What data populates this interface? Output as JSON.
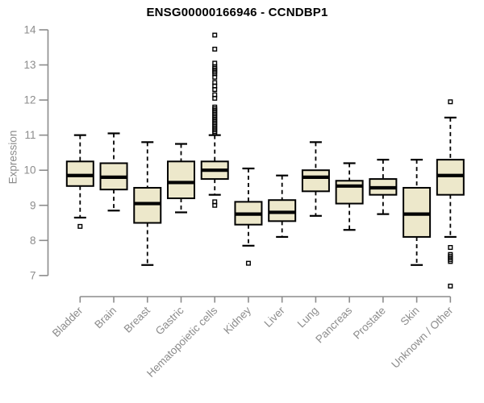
{
  "chart_data": {
    "type": "boxplot",
    "title": "ENSG00000166946 - CCNDBP1",
    "ylabel": "Expression",
    "xlabel": "",
    "y_axis": {
      "min": 7,
      "max": 14,
      "ticks": [
        7,
        8,
        9,
        10,
        11,
        12,
        13,
        14
      ]
    },
    "grid": "off",
    "legend": "none",
    "categories": [
      "Bladder",
      "Brain",
      "Breast",
      "Gastric",
      "Hematopoietic cells",
      "Kidney",
      "Liver",
      "Lung",
      "Pancreas",
      "Prostate",
      "Skin",
      "Unknown / Other"
    ],
    "boxes": [
      {
        "category": "Bladder",
        "low": 8.65,
        "q1": 9.55,
        "median": 9.85,
        "q3": 10.25,
        "high": 11.0,
        "outliers": [
          8.4
        ]
      },
      {
        "category": "Brain",
        "low": 8.85,
        "q1": 9.45,
        "median": 9.8,
        "q3": 10.2,
        "high": 11.05,
        "outliers": []
      },
      {
        "category": "Breast",
        "low": 7.3,
        "q1": 8.5,
        "median": 9.05,
        "q3": 9.5,
        "high": 10.8,
        "outliers": []
      },
      {
        "category": "Gastric",
        "low": 8.8,
        "q1": 9.2,
        "median": 9.65,
        "q3": 10.25,
        "high": 10.75,
        "outliers": []
      },
      {
        "category": "Hematopoietic cells",
        "low": 9.3,
        "q1": 9.75,
        "median": 10.0,
        "q3": 10.25,
        "high": 11.0,
        "outliers": [
          13.85,
          13.45,
          13.05,
          12.95,
          12.9,
          12.85,
          12.8,
          12.75,
          12.65,
          12.5,
          12.4,
          12.3,
          12.15,
          12.05,
          11.8,
          11.75,
          11.7,
          11.65,
          11.6,
          11.55,
          11.5,
          11.45,
          11.4,
          11.35,
          11.3,
          11.25,
          11.2,
          11.15,
          11.1,
          11.05,
          9.1,
          9.0
        ]
      },
      {
        "category": "Kidney",
        "low": 7.85,
        "q1": 8.45,
        "median": 8.75,
        "q3": 9.1,
        "high": 10.05,
        "outliers": [
          7.35
        ]
      },
      {
        "category": "Liver",
        "low": 8.1,
        "q1": 8.55,
        "median": 8.8,
        "q3": 9.15,
        "high": 9.85,
        "outliers": []
      },
      {
        "category": "Lung",
        "low": 8.7,
        "q1": 9.4,
        "median": 9.8,
        "q3": 10.0,
        "high": 10.8,
        "outliers": []
      },
      {
        "category": "Pancreas",
        "low": 8.3,
        "q1": 9.05,
        "median": 9.55,
        "q3": 9.7,
        "high": 10.2,
        "outliers": []
      },
      {
        "category": "Prostate",
        "low": 8.75,
        "q1": 9.3,
        "median": 9.5,
        "q3": 9.75,
        "high": 10.3,
        "outliers": []
      },
      {
        "category": "Skin",
        "low": 7.3,
        "q1": 8.1,
        "median": 8.75,
        "q3": 9.5,
        "high": 10.3,
        "outliers": []
      },
      {
        "category": "Unknown / Other",
        "low": 8.1,
        "q1": 9.3,
        "median": 9.85,
        "q3": 10.3,
        "high": 11.5,
        "outliers": [
          11.95,
          7.8,
          7.6,
          7.55,
          7.5,
          7.45,
          7.4,
          6.7
        ]
      }
    ],
    "colors": {
      "box_fill": "#EDE8CB",
      "box_stroke": "#000000",
      "median": "#000000",
      "whisker": "#000000",
      "axis": "#8c8c8c",
      "tick_label": "#8c8c8c",
      "title": "#000000",
      "background": "#FFFFFF"
    }
  }
}
